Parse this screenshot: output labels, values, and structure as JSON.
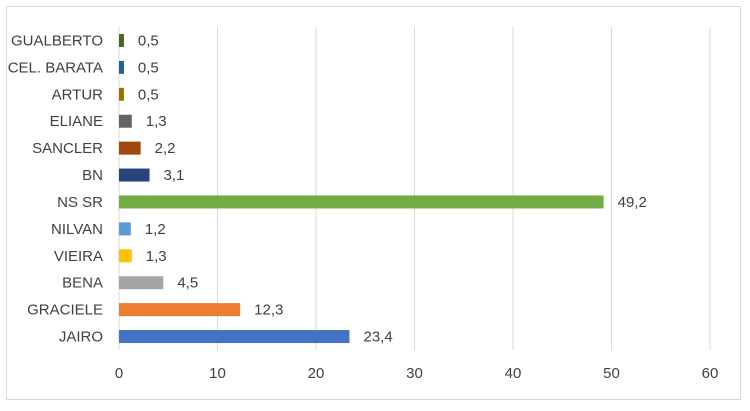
{
  "chart_data": {
    "type": "bar",
    "orientation": "horizontal",
    "categories": [
      "JAIRO",
      "GRACIELE",
      "BENA",
      "VIEIRA",
      "NILVAN",
      "NS SR",
      "BN",
      "SANCLER",
      "ELIANE",
      "ARTUR",
      "CEL. BARATA",
      "GUALBERTO"
    ],
    "values": [
      23.4,
      12.3,
      4.5,
      1.3,
      1.2,
      49.2,
      3.1,
      2.2,
      1.3,
      0.5,
      0.5,
      0.5
    ],
    "value_labels": [
      "23,4",
      "12,3",
      "4,5",
      "1,3",
      "1,2",
      "49,2",
      "3,1",
      "2,2",
      "1,3",
      "0,5",
      "0,5",
      "0,5"
    ],
    "colors": [
      "#4472c4",
      "#ed7d31",
      "#a5a5a5",
      "#ffc000",
      "#5b9bd5",
      "#70ad47",
      "#264478",
      "#9e480e",
      "#636363",
      "#997300",
      "#255e91",
      "#43682b"
    ],
    "xlim": [
      0,
      60
    ],
    "xticks": [
      "0",
      "10",
      "20",
      "30",
      "40",
      "50",
      "60"
    ],
    "xtick_values": [
      0,
      10,
      20,
      30,
      40,
      50,
      60
    ],
    "grid": true,
    "legend": "none",
    "title": "",
    "xlabel": "",
    "ylabel": ""
  }
}
